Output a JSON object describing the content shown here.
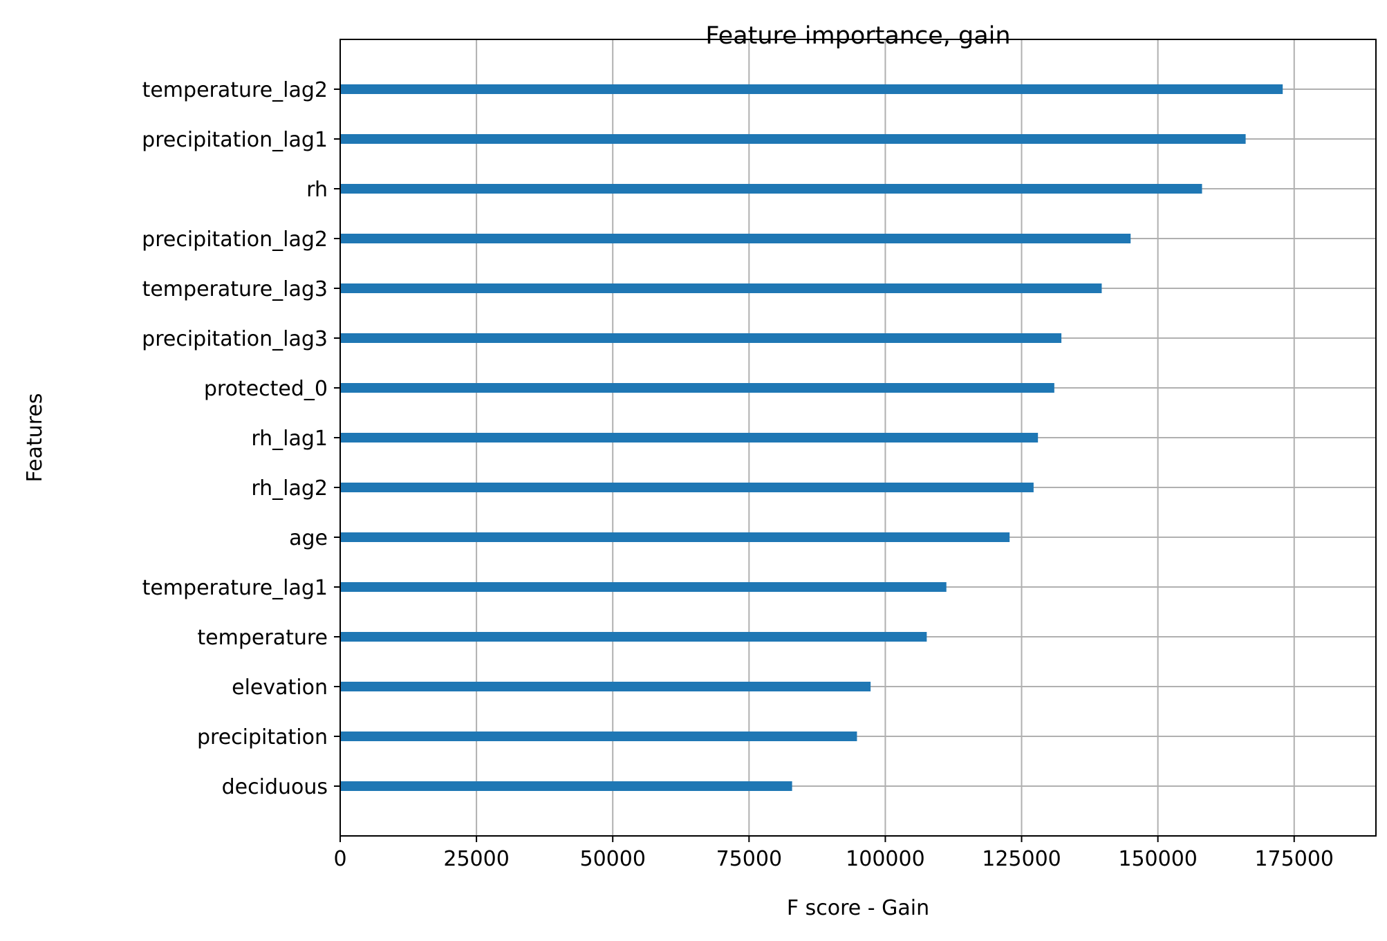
{
  "chart_data": {
    "type": "bar",
    "orientation": "horizontal",
    "title": "Feature importance, gain",
    "xlabel": "F score - Gain",
    "ylabel": "Features",
    "xlim": [
      0,
      190000
    ],
    "xticks": [
      0,
      25000,
      50000,
      75000,
      100000,
      125000,
      150000,
      175000
    ],
    "xtick_labels": [
      "0",
      "25000",
      "50000",
      "75000",
      "100000",
      "125000",
      "150000",
      "175000"
    ],
    "grid": true,
    "bar_color": "#1f77b4",
    "categories": [
      "temperature_lag2",
      "precipitation_lag1",
      "rh",
      "precipitation_lag2",
      "temperature_lag3",
      "precipitation_lag3",
      "protected_0",
      "rh_lag1",
      "rh_lag2",
      "age",
      "temperature_lag1",
      "temperature",
      "elevation",
      "precipitation",
      "deciduous"
    ],
    "values": [
      172900,
      166100,
      158100,
      145000,
      139700,
      132300,
      131000,
      128000,
      127200,
      122800,
      111200,
      107600,
      97300,
      94800,
      82900
    ]
  }
}
